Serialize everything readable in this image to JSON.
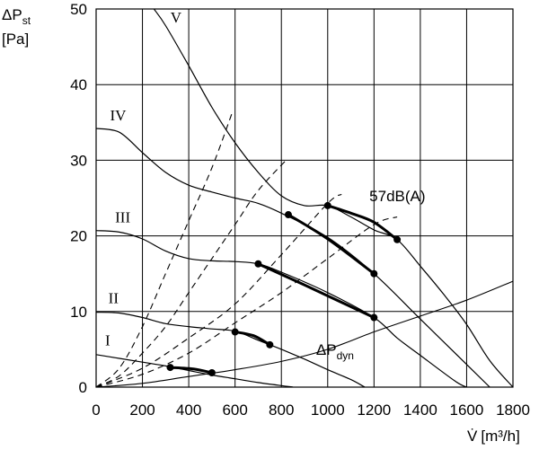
{
  "chart_data": {
    "type": "line",
    "title": "",
    "ylabel": {
      "symbol": "ΔP",
      "subscript": "st",
      "unit": "[Pa]"
    },
    "xlabel": {
      "symbol": "V̇",
      "unit": "[m³/h]"
    },
    "xlim": [
      0,
      1800
    ],
    "ylim": [
      0,
      50
    ],
    "xticks": [
      "0",
      "200",
      "400",
      "600",
      "800",
      "1000",
      "1200",
      "1400",
      "1600",
      "1800"
    ],
    "yticks": [
      "0",
      "10",
      "20",
      "30",
      "40",
      "50"
    ],
    "grid": true,
    "fan_curves": [
      {
        "name": "I",
        "points": [
          [
            0,
            4.3
          ],
          [
            100,
            3.8
          ],
          [
            200,
            3.3
          ],
          [
            300,
            2.8
          ],
          [
            400,
            2.2
          ],
          [
            500,
            1.6
          ],
          [
            600,
            1.1
          ],
          [
            700,
            0.6
          ],
          [
            800,
            0.2
          ],
          [
            850,
            0
          ]
        ]
      },
      {
        "name": "II",
        "points": [
          [
            0,
            9.9
          ],
          [
            100,
            9.8
          ],
          [
            200,
            9.2
          ],
          [
            300,
            8.4
          ],
          [
            400,
            8.0
          ],
          [
            500,
            7.7
          ],
          [
            600,
            7.4
          ],
          [
            700,
            6.2
          ],
          [
            800,
            5.0
          ],
          [
            900,
            3.7
          ],
          [
            1000,
            2.3
          ],
          [
            1100,
            1.0
          ],
          [
            1160,
            0
          ]
        ]
      },
      {
        "name": "III",
        "points": [
          [
            0,
            20.7
          ],
          [
            100,
            20.5
          ],
          [
            200,
            19.6
          ],
          [
            300,
            18.0
          ],
          [
            400,
            17.0
          ],
          [
            500,
            16.7
          ],
          [
            600,
            16.6
          ],
          [
            700,
            16.3
          ],
          [
            800,
            15.2
          ],
          [
            1000,
            12.5
          ],
          [
            1200,
            9.2
          ],
          [
            1300,
            6.5
          ],
          [
            1400,
            4.2
          ],
          [
            1550,
            0.8
          ],
          [
            1600,
            0
          ]
        ]
      },
      {
        "name": "IV",
        "points": [
          [
            0,
            34.2
          ],
          [
            100,
            33.7
          ],
          [
            200,
            31.0
          ],
          [
            300,
            28.4
          ],
          [
            400,
            26.7
          ],
          [
            500,
            25.8
          ],
          [
            600,
            25.0
          ],
          [
            700,
            24.3
          ],
          [
            800,
            23.0
          ],
          [
            1000,
            19.8
          ],
          [
            1200,
            15.0
          ],
          [
            1400,
            9.0
          ],
          [
            1600,
            3.0
          ],
          [
            1700,
            0
          ]
        ]
      },
      {
        "name": "V",
        "points": [
          [
            250,
            50
          ],
          [
            300,
            47.8
          ],
          [
            400,
            42.5
          ],
          [
            500,
            37.0
          ],
          [
            600,
            32.3
          ],
          [
            700,
            28.4
          ],
          [
            800,
            25.3
          ],
          [
            900,
            24.0
          ],
          [
            1000,
            24.0
          ],
          [
            1100,
            22.5
          ],
          [
            1200,
            20.8
          ],
          [
            1300,
            19.5
          ],
          [
            1400,
            16.0
          ],
          [
            1500,
            12.3
          ],
          [
            1600,
            8.3
          ],
          [
            1700,
            3.5
          ],
          [
            1800,
            0
          ]
        ]
      }
    ],
    "curve_labels": [
      {
        "text": "V",
        "at": [
          345,
          48.2
        ]
      },
      {
        "text": "IV",
        "at": [
          95,
          35.3
        ]
      },
      {
        "text": "III",
        "at": [
          115,
          21.8
        ]
      },
      {
        "text": "II",
        "at": [
          75,
          11.1
        ]
      },
      {
        "text": "I",
        "at": [
          50,
          5.5
        ]
      }
    ],
    "dynamic_pressure": {
      "label": {
        "symbol": "ΔP",
        "subscript": "dyn",
        "at": [
          950,
          4.3
        ]
      },
      "points": [
        [
          0,
          0
        ],
        [
          200,
          0.5
        ],
        [
          400,
          1.4
        ],
        [
          600,
          2.3
        ],
        [
          800,
          3.4
        ],
        [
          1000,
          5.0
        ],
        [
          1200,
          7.3
        ],
        [
          1400,
          9.4
        ],
        [
          1600,
          11.5
        ],
        [
          1800,
          14.0
        ]
      ]
    },
    "system_curves": [
      {
        "points": [
          [
            0,
            0
          ],
          [
            100,
            2.5
          ],
          [
            200,
            8
          ],
          [
            300,
            15
          ],
          [
            400,
            22
          ],
          [
            500,
            29
          ],
          [
            590,
            36.5
          ]
        ]
      },
      {
        "points": [
          [
            0,
            0
          ],
          [
            100,
            1.5
          ],
          [
            200,
            4.5
          ],
          [
            300,
            8
          ],
          [
            400,
            12.5
          ],
          [
            500,
            17
          ],
          [
            600,
            21.5
          ],
          [
            700,
            26
          ],
          [
            820,
            30
          ]
        ]
      },
      {
        "points": [
          [
            0,
            0
          ],
          [
            200,
            2.5
          ],
          [
            400,
            6.5
          ],
          [
            600,
            11
          ],
          [
            800,
            17.5
          ],
          [
            1000,
            24.3
          ],
          [
            1060,
            25.5
          ]
        ]
      },
      {
        "points": [
          [
            0,
            0
          ],
          [
            200,
            1.7
          ],
          [
            400,
            4.5
          ],
          [
            600,
            8.5
          ],
          [
            800,
            12.5
          ],
          [
            1000,
            17
          ],
          [
            1200,
            21.5
          ],
          [
            1300,
            22.5
          ]
        ]
      }
    ],
    "operating_lines": [
      {
        "points": [
          [
            1300,
            19.5
          ],
          [
            1200,
            21.8
          ],
          [
            1100,
            23.0
          ],
          [
            1000,
            24.0
          ]
        ]
      },
      {
        "points": [
          [
            830,
            22.8
          ],
          [
            1000,
            19.6
          ],
          [
            1200,
            15.0
          ]
        ]
      },
      {
        "points": [
          [
            700,
            16.3
          ],
          [
            900,
            13.5
          ],
          [
            1200,
            9.2
          ]
        ]
      },
      {
        "points": [
          [
            600,
            7.3
          ],
          [
            680,
            6.8
          ],
          [
            750,
            5.6
          ]
        ]
      },
      {
        "points": [
          [
            320,
            2.6
          ],
          [
            420,
            2.4
          ],
          [
            500,
            1.9
          ]
        ]
      }
    ],
    "operating_points": [
      [
        1300,
        19.5
      ],
      [
        1000,
        24.0
      ],
      [
        830,
        22.8
      ],
      [
        1200,
        15.0
      ],
      [
        700,
        16.3
      ],
      [
        1200,
        9.2
      ],
      [
        600,
        7.3
      ],
      [
        750,
        5.6
      ],
      [
        320,
        2.6
      ],
      [
        500,
        1.9
      ]
    ],
    "annotations": [
      {
        "text": "57dB(A)",
        "at": [
          1180,
          24.6
        ]
      }
    ]
  }
}
